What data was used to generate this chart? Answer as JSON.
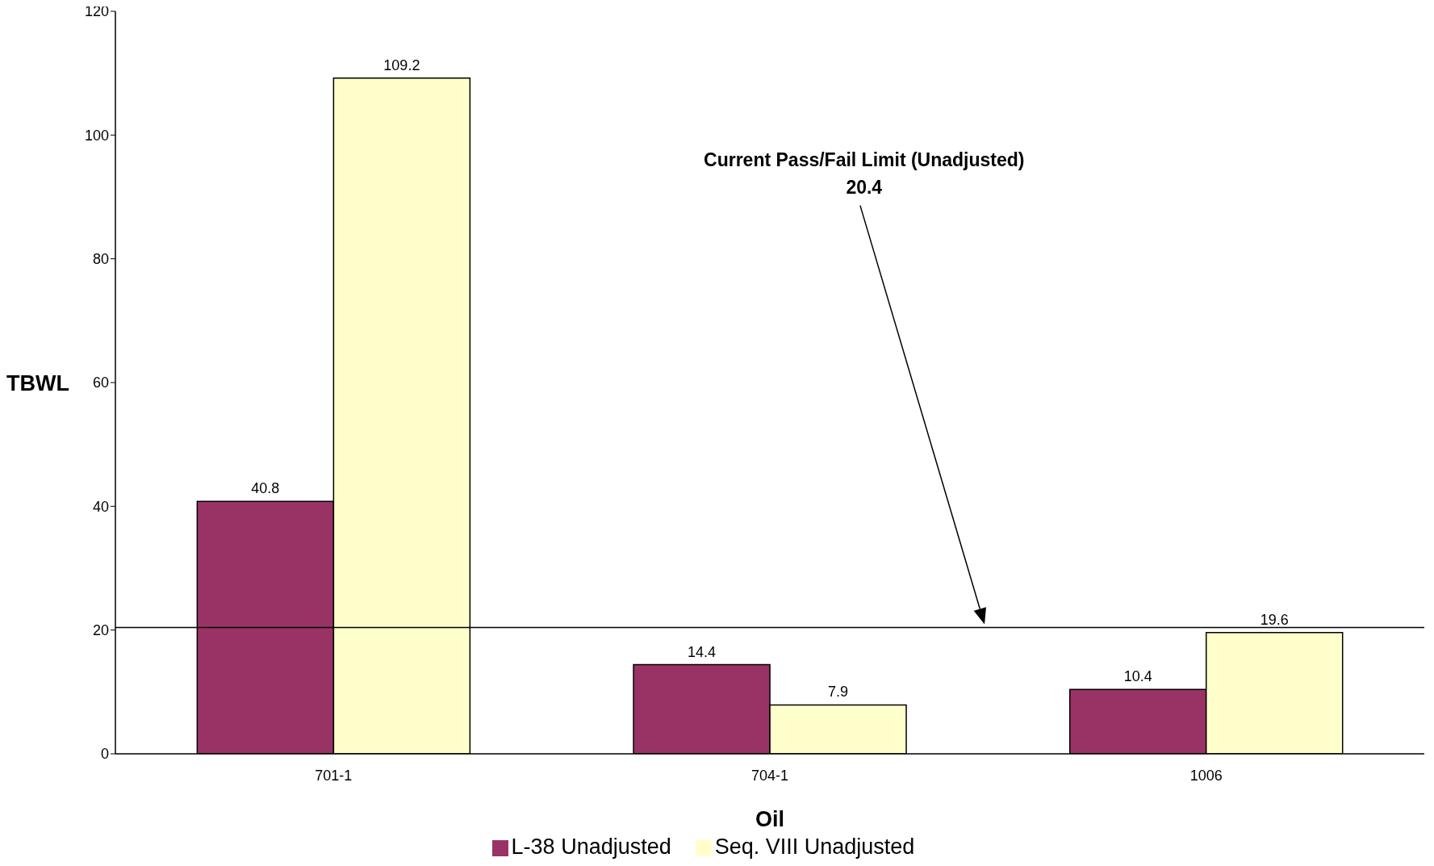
{
  "chart_data": {
    "type": "bar",
    "categories": [
      "701-1",
      "704-1",
      "1006"
    ],
    "series": [
      {
        "name": "L-38 Unadjusted",
        "color": "#993366",
        "values": [
          40.8,
          14.4,
          10.4
        ]
      },
      {
        "name": "Seq. VIII Unadjusted",
        "color": "#ffffcc",
        "values": [
          109.2,
          7.9,
          19.6
        ]
      }
    ],
    "xlabel": "Oil",
    "ylabel": "TBWL",
    "ylim": [
      0,
      120
    ],
    "yticks": [
      0,
      20,
      40,
      60,
      80,
      100,
      120
    ],
    "ref_lines": [
      {
        "axis": "y",
        "value": 20.4,
        "color": "#000000"
      }
    ],
    "annotations": [
      "Current Pass/Fail Limit (Unadjusted)",
      "20.4"
    ],
    "data_labels": true,
    "legend": "bottom",
    "grid": false
  }
}
